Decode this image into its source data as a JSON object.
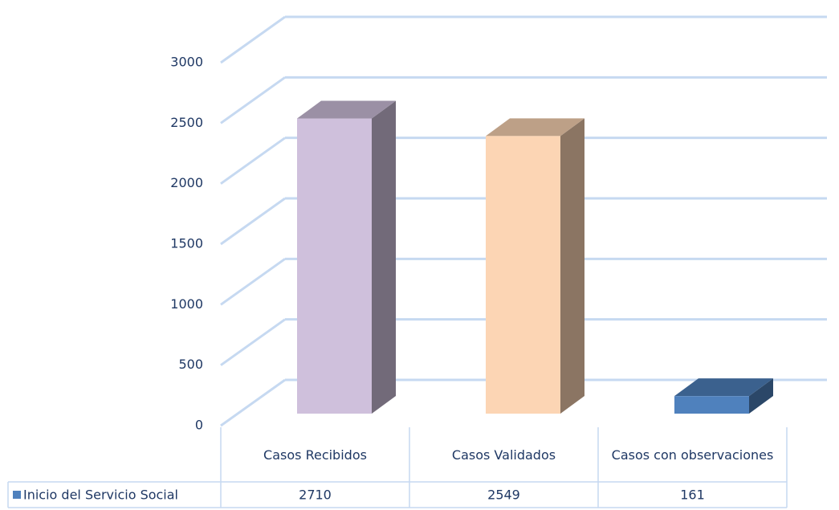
{
  "chart_data": {
    "type": "bar3d",
    "categories": [
      "Casos Recibidos",
      "Casos Validados",
      "Casos con observaciones"
    ],
    "series": [
      {
        "name": "Inicio del Servicio Social",
        "color": "#4f81bd",
        "colors": [
          "#cfc0dc",
          "#fcd5b4",
          "#4f81bd"
        ],
        "values": [
          2710,
          2549,
          161
        ]
      }
    ],
    "ylim": [
      0,
      3000
    ],
    "yticks": [
      0,
      500,
      1000,
      1500,
      2000,
      2500,
      3000
    ],
    "grid": true
  }
}
